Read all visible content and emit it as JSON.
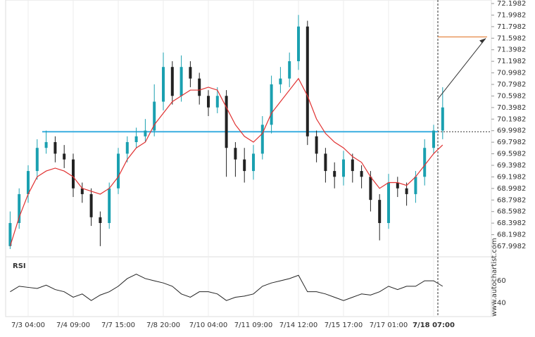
{
  "chart_data": {
    "type": "candlestick",
    "categories": [
      null,
      null,
      "7/3 04:00",
      null,
      null,
      null,
      null,
      "7/4 09:00",
      null,
      null,
      null,
      null,
      "7/7 15:00",
      null,
      null,
      null,
      null,
      "7/8 20:00",
      null,
      null,
      null,
      null,
      "7/10 04:00",
      null,
      null,
      null,
      null,
      "7/11 09:00",
      null,
      null,
      null,
      null,
      "7/14 12:00",
      null,
      null,
      null,
      null,
      "7/15 17:00",
      null,
      null,
      null,
      null,
      "7/17 01:00",
      null,
      null,
      null,
      null,
      "7/18 07:00",
      null
    ],
    "open": [
      68.0,
      68.4,
      68.9,
      69.3,
      69.7,
      69.8,
      69.6,
      69.5,
      69.0,
      68.9,
      68.5,
      68.4,
      69.0,
      69.6,
      69.8,
      69.9,
      70.0,
      70.5,
      71.1,
      70.6,
      71.1,
      70.9,
      70.6,
      70.4,
      70.6,
      69.7,
      69.5,
      69.3,
      69.6,
      70.1,
      70.8,
      70.9,
      71.2,
      71.8,
      69.9,
      69.6,
      69.3,
      69.2,
      69.5,
      69.3,
      69.2,
      68.8,
      68.4,
      69.1,
      69.0,
      68.9,
      69.2,
      69.7,
      70.0
    ],
    "high": [
      68.6,
      69.0,
      69.4,
      69.85,
      70.0,
      69.9,
      69.75,
      69.6,
      69.1,
      69.0,
      68.6,
      69.1,
      69.7,
      69.9,
      70.05,
      70.2,
      70.8,
      71.35,
      71.2,
      71.3,
      71.2,
      71.0,
      70.7,
      70.75,
      70.7,
      69.8,
      69.7,
      69.75,
      70.25,
      70.95,
      71.1,
      71.35,
      72.0,
      71.9,
      70.0,
      69.7,
      69.45,
      69.65,
      69.6,
      69.4,
      69.3,
      68.9,
      69.25,
      69.2,
      69.1,
      69.3,
      69.85,
      70.1,
      70.75
    ],
    "low": [
      67.95,
      68.3,
      68.75,
      69.15,
      69.6,
      69.45,
      69.35,
      68.85,
      68.75,
      68.35,
      68.0,
      68.3,
      68.9,
      69.45,
      69.7,
      69.8,
      69.9,
      70.35,
      70.45,
      70.5,
      70.75,
      70.45,
      70.25,
      70.3,
      69.2,
      69.2,
      69.1,
      69.15,
      69.5,
      69.95,
      70.65,
      70.75,
      71.05,
      69.75,
      69.45,
      69.1,
      69.0,
      69.05,
      69.1,
      69.0,
      68.6,
      68.1,
      68.3,
      68.85,
      68.7,
      68.75,
      69.05,
      69.6,
      69.85
    ],
    "close": [
      68.4,
      68.9,
      69.3,
      69.7,
      69.8,
      69.6,
      69.5,
      69.0,
      68.9,
      68.5,
      68.4,
      69.0,
      69.6,
      69.8,
      69.9,
      70.0,
      70.5,
      71.1,
      70.6,
      71.1,
      70.9,
      70.6,
      70.4,
      70.6,
      69.7,
      69.5,
      69.3,
      69.6,
      70.1,
      70.8,
      70.9,
      71.2,
      71.8,
      69.9,
      69.6,
      69.3,
      69.2,
      69.5,
      69.3,
      69.2,
      68.8,
      68.4,
      69.1,
      69.0,
      68.9,
      69.2,
      69.7,
      70.0,
      70.4
    ],
    "up_color": "#1aa0b0",
    "down_color": "#222222",
    "moving_average": {
      "color": "#e03030",
      "values": [
        68.0,
        68.5,
        68.9,
        69.2,
        69.3,
        69.35,
        69.3,
        69.2,
        69.0,
        68.95,
        68.9,
        69.0,
        69.2,
        69.5,
        69.7,
        69.8,
        70.1,
        70.3,
        70.5,
        70.6,
        70.7,
        70.7,
        70.75,
        70.7,
        70.4,
        70.1,
        69.9,
        69.8,
        69.95,
        70.3,
        70.5,
        70.7,
        70.9,
        70.6,
        70.2,
        69.95,
        69.8,
        69.7,
        69.55,
        69.45,
        69.2,
        69.0,
        69.1,
        69.1,
        69.05,
        69.2,
        69.4,
        69.6,
        69.75
      ]
    },
    "support_level": 69.98,
    "support_color": "#3aaee0",
    "target_level": 71.62,
    "target_color": "#e07020",
    "ylim": [
      67.9982,
      72.1982
    ],
    "yticks": [
      67.9982,
      68.1982,
      68.3982,
      68.5982,
      68.7982,
      68.9982,
      69.1982,
      69.3982,
      69.5982,
      69.7982,
      69.9982,
      70.1982,
      70.3982,
      70.5982,
      70.7982,
      70.9982,
      71.1982,
      71.3982,
      71.5982,
      71.7982,
      71.9982,
      72.1982
    ],
    "rsi": {
      "title": "RSI",
      "color": "#222222",
      "values": [
        50,
        55,
        54,
        53,
        56,
        52,
        50,
        45,
        48,
        42,
        47,
        50,
        55,
        62,
        66,
        62,
        60,
        58,
        55,
        48,
        45,
        50,
        50,
        48,
        42,
        45,
        46,
        48,
        55,
        58,
        60,
        62,
        65,
        50,
        50,
        48,
        45,
        42,
        45,
        48,
        47,
        50,
        55,
        52,
        55,
        55,
        60,
        60,
        55
      ],
      "ylim": [
        28,
        78
      ],
      "yticks": [
        40,
        60
      ]
    },
    "watermark": "www.autochartist.com"
  }
}
